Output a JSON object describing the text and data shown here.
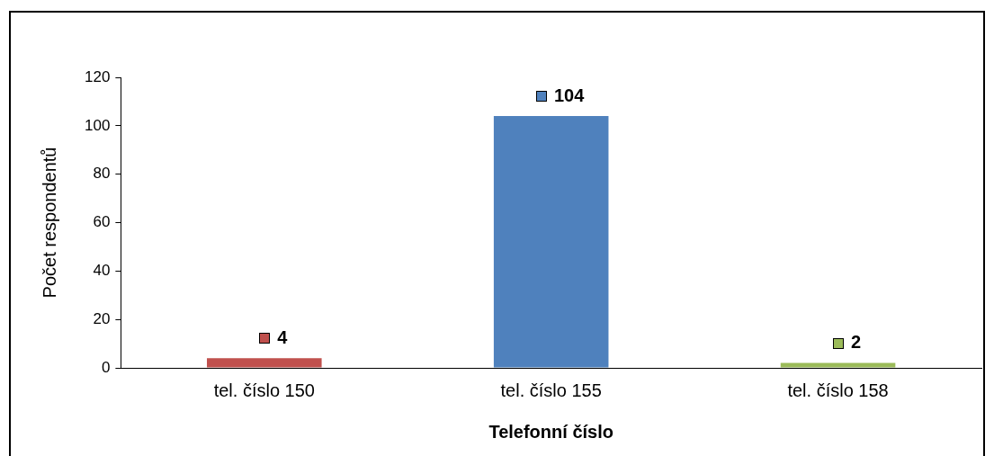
{
  "chart_data": {
    "type": "bar",
    "xlabel": "Telefonní číslo",
    "ylabel": "Počet respondentů",
    "categories": [
      "tel. číslo 150",
      "tel. číslo 155",
      "tel. číslo 158"
    ],
    "values": [
      4,
      104,
      2
    ],
    "colors": [
      "#c0504d",
      "#4f81bd",
      "#9bbb59"
    ],
    "ylim": [
      0,
      120
    ],
    "yticks": [
      0,
      20,
      40,
      60,
      80,
      100,
      120
    ],
    "grid": false,
    "legend": false,
    "data_labels": true
  }
}
